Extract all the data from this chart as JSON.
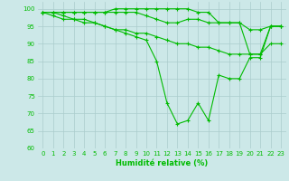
{
  "background_color": "#cce8e8",
  "grid_color": "#aacccc",
  "line_color": "#00bb00",
  "line_width": 0.8,
  "marker": "+",
  "marker_size": 3,
  "marker_edge_width": 0.8,
  "xlabel": "Humidité relative (%)",
  "xlabel_fontsize": 6,
  "tick_fontsize": 5,
  "ylim": [
    60,
    102
  ],
  "xlim": [
    -0.5,
    23.5
  ],
  "yticks": [
    60,
    65,
    70,
    75,
    80,
    85,
    90,
    95,
    100
  ],
  "xticks": [
    0,
    1,
    2,
    3,
    4,
    5,
    6,
    7,
    8,
    9,
    10,
    11,
    12,
    13,
    14,
    15,
    16,
    17,
    18,
    19,
    20,
    21,
    22,
    23
  ],
  "series": [
    [
      99,
      99,
      99,
      99,
      99,
      99,
      99,
      100,
      100,
      100,
      100,
      100,
      100,
      100,
      100,
      99,
      99,
      96,
      96,
      96,
      94,
      94,
      95,
      95
    ],
    [
      99,
      99,
      99,
      99,
      99,
      99,
      99,
      99,
      99,
      99,
      98,
      97,
      96,
      96,
      97,
      97,
      96,
      96,
      96,
      96,
      87,
      87,
      95,
      95
    ],
    [
      99,
      98,
      97,
      97,
      96,
      96,
      95,
      94,
      94,
      93,
      93,
      92,
      91,
      90,
      90,
      89,
      89,
      88,
      87,
      87,
      87,
      87,
      90,
      90
    ],
    [
      99,
      99,
      98,
      97,
      97,
      96,
      95,
      94,
      93,
      92,
      91,
      85,
      73,
      67,
      68,
      73,
      68,
      81,
      80,
      80,
      86,
      86,
      95,
      95
    ]
  ]
}
